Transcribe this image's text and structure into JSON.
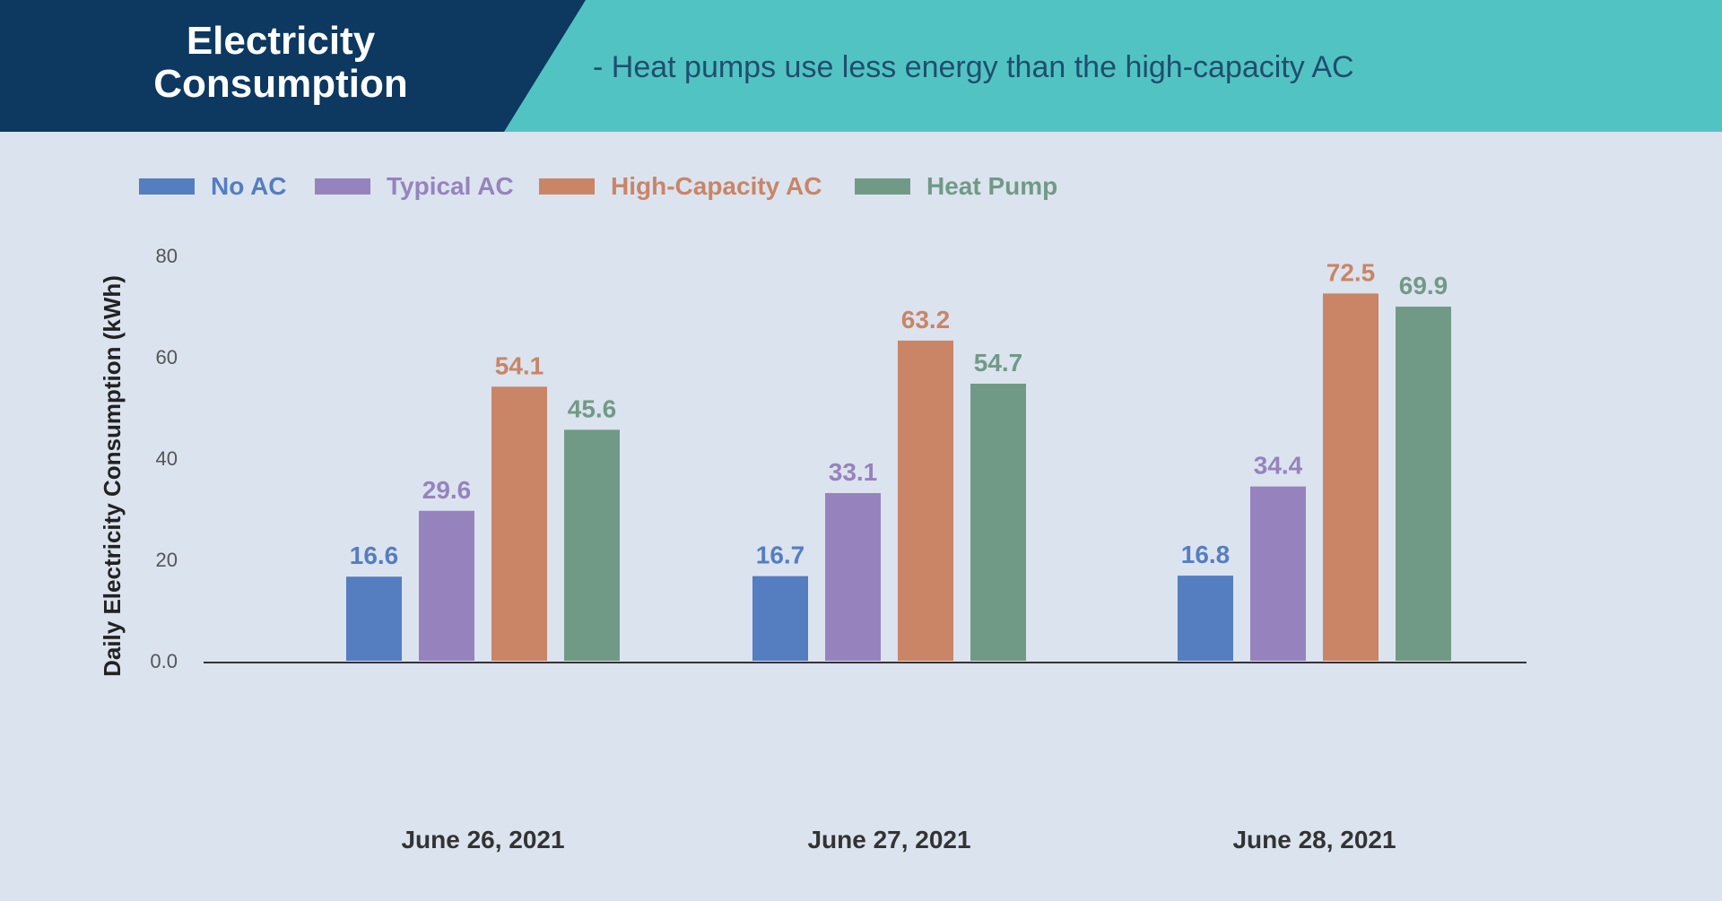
{
  "header": {
    "title_line1": "Electricity",
    "title_line2": "Consumption",
    "subtitle": "- Heat pumps use less energy than the high-capacity AC",
    "colors": {
      "title_bg": "#0d3860",
      "subtitle_bg": "#52c3c3",
      "page_bg": "#dbe3ef"
    }
  },
  "chart_data": {
    "type": "bar",
    "title": "",
    "xlabel": "",
    "ylabel": "Daily Electricity Consumption (kWh)",
    "ylim": [
      0,
      80
    ],
    "yticks": [
      "0.0",
      "20",
      "40",
      "60",
      "80"
    ],
    "ytick_values": [
      0,
      20,
      40,
      60,
      80
    ],
    "grid": false,
    "legend_position": "top-left",
    "categories": [
      "June 26, 2021",
      "June 27, 2021",
      "June 28, 2021"
    ],
    "series": [
      {
        "name": "No AC",
        "color": "#557ec0",
        "values": [
          16.6,
          16.7,
          16.8
        ]
      },
      {
        "name": "Typical AC",
        "color": "#9683bd",
        "values": [
          29.6,
          33.1,
          34.4
        ]
      },
      {
        "name": "High-Capacity AC",
        "color": "#c98566",
        "values": [
          54.1,
          63.2,
          72.5
        ]
      },
      {
        "name": "Heat Pump",
        "color": "#719a86",
        "values": [
          45.6,
          54.7,
          69.9
        ]
      }
    ]
  }
}
